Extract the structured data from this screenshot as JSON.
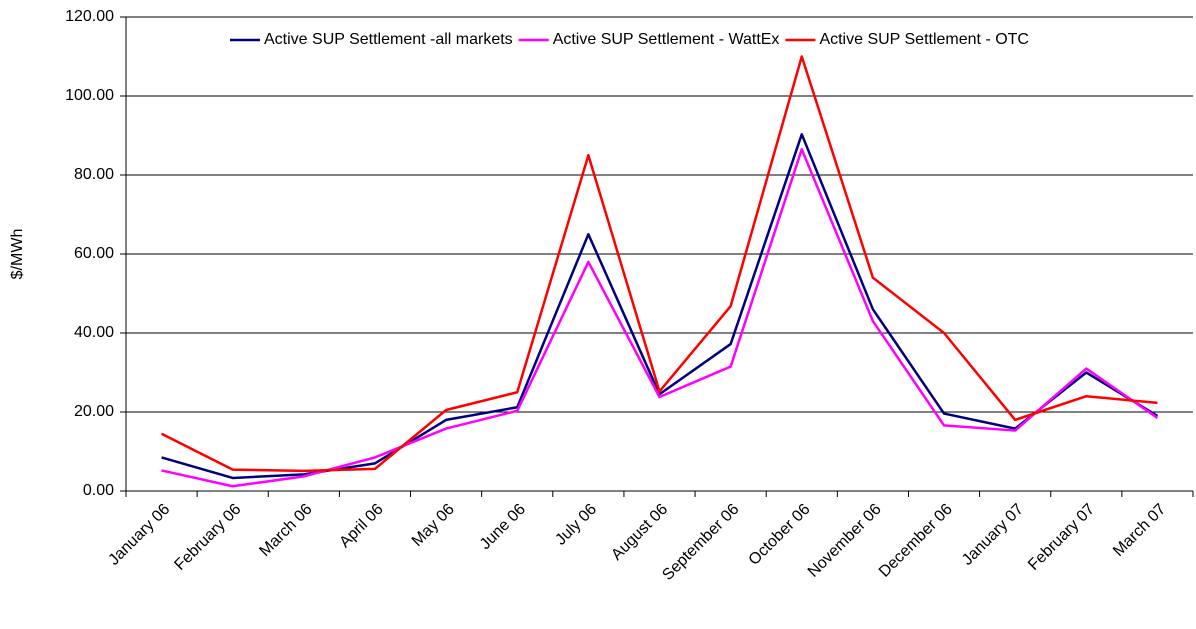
{
  "chart_data": {
    "type": "line",
    "y_label": "$/MWh",
    "categories": [
      "January 06",
      "February 06",
      "March 06",
      "April 06",
      "May 06",
      "June 06",
      "July 06",
      "August 06",
      "September 06",
      "October 06",
      "November 06",
      "December 06",
      "January 07",
      "February 07",
      "March 07"
    ],
    "series": [
      {
        "name": "Active SUP Settlement -all markets",
        "color": "#000080",
        "values": [
          8.5,
          3.3,
          4.2,
          7,
          18,
          21.2,
          65,
          24.5,
          37.2,
          90.3,
          46,
          19.6,
          15.8,
          30,
          19
        ]
      },
      {
        "name": "Active SUP Settlement - WattEx",
        "color": "#ff00ff",
        "values": [
          5.2,
          1.2,
          3.7,
          8.5,
          15.8,
          20.3,
          58,
          23.8,
          31.5,
          86.5,
          43,
          16.6,
          15.3,
          31,
          18.5
        ]
      },
      {
        "name": "Active SUP Settlement - OTC",
        "color": "#ff0000",
        "values": [
          14.5,
          5.4,
          5.1,
          5.6,
          20.5,
          25,
          85,
          25.2,
          46.8,
          110,
          54,
          40,
          18,
          24,
          22.3
        ]
      }
    ],
    "ylim": [
      0,
      120
    ],
    "yticks": [
      {
        "value": 0,
        "label": "0.00"
      },
      {
        "value": 20,
        "label": "20.00"
      },
      {
        "value": 40,
        "label": "40.00"
      },
      {
        "value": 60,
        "label": "60.00"
      },
      {
        "value": 80,
        "label": "80.00"
      },
      {
        "value": 100,
        "label": "100.00"
      },
      {
        "value": 120,
        "label": "120.00"
      }
    ],
    "grid": true,
    "legend": "top"
  }
}
